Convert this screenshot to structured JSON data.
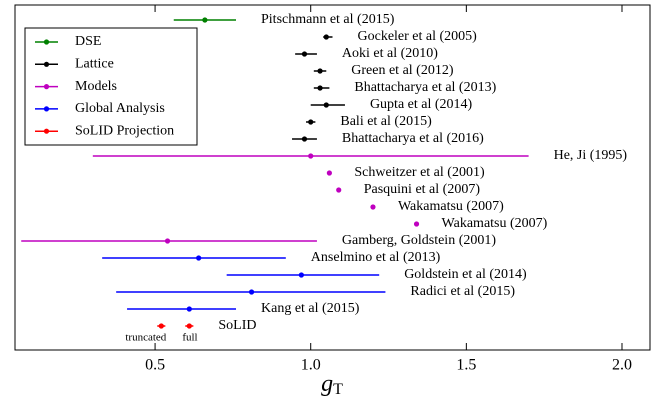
{
  "chart_data": {
    "type": "forest",
    "xlim": [
      0.05,
      2.09
    ],
    "xticks": [
      0.5,
      {
        "value": 1,
        "label": "1.0"
      },
      1.5,
      {
        "value": 2,
        "label": "2.0"
      }
    ],
    "xlabel": {
      "symbol": "g",
      "subscript": "T"
    },
    "legend": "upper left",
    "series": [
      {
        "name": "DSE",
        "color": "#008000",
        "labels": [
          "Pitschmann et al (2015)"
        ],
        "values": [
          0.66
        ],
        "lower": [
          0.56
        ],
        "upper": [
          0.76
        ]
      },
      {
        "name": "Lattice",
        "color": "#000000",
        "labels": [
          "Gockeler et al (2005)",
          "Aoki et al (2010)",
          "Green et al (2012)",
          "Bhattacharya et al (2013)",
          "Gupta et al (2014)",
          "Bali et al (2015)",
          "Bhattacharya et al (2016)"
        ],
        "values": [
          1.05,
          0.98,
          1.03,
          1.03,
          1.05,
          1.0,
          0.98
        ],
        "lower": [
          1.04,
          0.95,
          1.01,
          1.01,
          1.0,
          0.985,
          0.94
        ],
        "upper": [
          1.07,
          1.02,
          1.05,
          1.06,
          1.11,
          1.015,
          1.02
        ]
      },
      {
        "name": "Models",
        "color": "#bf00bf",
        "labels": [
          "He, Ji (1995)",
          "Schweitzer et al (2001)",
          "Pasquini et al (2007)",
          "Wakamatsu (2007)",
          "Wakamatsu (2007)",
          "Gamberg, Goldstein (2001)"
        ],
        "values": [
          1.0,
          1.06,
          1.09,
          1.2,
          1.34,
          0.54
        ],
        "lower": [
          0.3,
          null,
          null,
          null,
          null,
          0.07
        ],
        "upper": [
          1.7,
          null,
          null,
          null,
          null,
          1.02
        ]
      },
      {
        "name": "Global Analysis",
        "color": "#0000ff",
        "labels": [
          "Anselmino et al (2013)",
          "Goldstein et al (2014)",
          "Radici et al (2015)",
          "Kang et al (2015)"
        ],
        "values": [
          0.64,
          0.97,
          0.81,
          0.61
        ],
        "lower": [
          0.33,
          0.73,
          0.375,
          0.41
        ],
        "upper": [
          0.92,
          1.22,
          1.24,
          0.76
        ]
      },
      {
        "name": "SoLID Projection",
        "color": "#ff0000",
        "group_label": "SoLID",
        "labels": [
          "truncated",
          "full"
        ],
        "values": [
          0.52,
          0.61
        ],
        "lower": [
          0.507,
          0.597
        ],
        "upper": [
          0.533,
          0.623
        ]
      }
    ]
  }
}
